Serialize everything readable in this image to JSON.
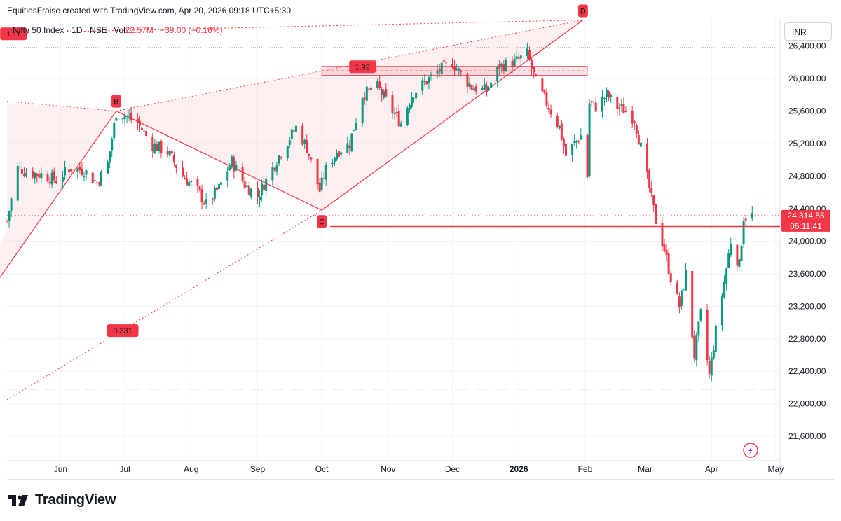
{
  "header": {
    "attribution": "EquitiesFraise created with TradingView.com, Apr 20, 2026 09:18 UTC+5:30"
  },
  "legend": {
    "symbol": "Nifty 50 Index · 1D · NSE",
    "vol_label": "Vol",
    "vol_value": "22.57M",
    "change": "−39.00 (−0.16%)"
  },
  "currency": "INR",
  "brand": {
    "name": "TradingView",
    "logo_icon": "tradingview-logo-icon"
  },
  "colors": {
    "up": "#089981",
    "down": "#f23645",
    "pattern": "#f23645",
    "fill": "rgba(242,54,69,0.08)",
    "grid": "#f0f3fa"
  },
  "chart_data": {
    "type": "candlestick",
    "ylim": [
      21300,
      26750
    ],
    "y_ticks": [
      "21,600.00",
      "22,000.00",
      "22,400.00",
      "22,800.00",
      "23,200.00",
      "23,600.00",
      "24,000.00",
      "24,400.00",
      "24,800.00",
      "25,200.00",
      "25,600.00",
      "26,000.00",
      "26,400.00"
    ],
    "y_tick_values": [
      21600,
      22000,
      22400,
      22800,
      23200,
      23600,
      24000,
      24400,
      24800,
      25200,
      25600,
      26000,
      26400
    ],
    "x_labels": [
      {
        "label": "Jun",
        "date": "2025-06-01"
      },
      {
        "label": "Jul",
        "date": "2025-07-01"
      },
      {
        "label": "Aug",
        "date": "2025-08-01"
      },
      {
        "label": "Sep",
        "date": "2025-09-01"
      },
      {
        "label": "Oct",
        "date": "2025-10-01"
      },
      {
        "label": "Nov",
        "date": "2025-11-01"
      },
      {
        "label": "Dec",
        "date": "2025-12-01"
      },
      {
        "label": "2026",
        "date": "2026-01-01",
        "bold": true
      },
      {
        "label": "Feb",
        "date": "2026-02-01"
      },
      {
        "label": "Mar",
        "date": "2026-03-01"
      },
      {
        "label": "Apr",
        "date": "2026-04-01"
      },
      {
        "label": "May",
        "date": "2026-05-01"
      }
    ],
    "last_price": "24,314.55",
    "countdown": "06:11:41",
    "last_price_value": 24314.55,
    "horizontal_level": 24180,
    "dotted_levels": [
      26380,
      22180
    ],
    "pattern_points": [
      {
        "label": "B",
        "date": "2025-06-27",
        "price": 25600
      },
      {
        "label": "C",
        "date": "2025-10-01",
        "price": 24380
      },
      {
        "label": "D",
        "date": "2026-01-31",
        "price": 26720
      }
    ],
    "pattern_start": {
      "date": "2025-04-15",
      "price": 22850
    },
    "ratios": [
      {
        "label": "1.11",
        "date": "2025-05-10",
        "price": 26550
      },
      {
        "label": "1.92",
        "date": "2025-10-20",
        "price": 26145
      },
      {
        "label": "0.331",
        "date": "2025-06-30",
        "price": 22900
      }
    ],
    "zone_192": [
      26040,
      26150
    ],
    "x_start": "2025-05-07",
    "x_end": "2026-05-03",
    "path": [
      [
        "2025-05-07",
        24250
      ],
      [
        "2025-05-12",
        24900
      ],
      [
        "2025-05-16",
        24850
      ],
      [
        "2025-05-23",
        24820
      ],
      [
        "2025-05-30",
        24750
      ],
      [
        "2025-06-05",
        24900
      ],
      [
        "2025-06-12",
        24870
      ],
      [
        "2025-06-18",
        24720
      ],
      [
        "2025-06-23",
        24950
      ],
      [
        "2025-06-27",
        25580
      ],
      [
        "2025-07-01",
        25550
      ],
      [
        "2025-07-07",
        25450
      ],
      [
        "2025-07-14",
        25180
      ],
      [
        "2025-07-21",
        25100
      ],
      [
        "2025-07-28",
        24800
      ],
      [
        "2025-08-04",
        24620
      ],
      [
        "2025-08-08",
        24450
      ],
      [
        "2025-08-14",
        24650
      ],
      [
        "2025-08-20",
        24980
      ],
      [
        "2025-08-26",
        24700
      ],
      [
        "2025-09-01",
        24550
      ],
      [
        "2025-09-05",
        24750
      ],
      [
        "2025-09-12",
        25100
      ],
      [
        "2025-09-19",
        25400
      ],
      [
        "2025-09-24",
        25150
      ],
      [
        "2025-09-30",
        24620
      ],
      [
        "2025-10-03",
        24880
      ],
      [
        "2025-10-08",
        25100
      ],
      [
        "2025-10-14",
        25200
      ],
      [
        "2025-10-20",
        25800
      ],
      [
        "2025-10-27",
        25900
      ],
      [
        "2025-11-03",
        25600
      ],
      [
        "2025-11-07",
        25450
      ],
      [
        "2025-11-12",
        25800
      ],
      [
        "2025-11-18",
        25950
      ],
      [
        "2025-11-25",
        26100
      ],
      [
        "2025-12-01",
        26200
      ],
      [
        "2025-12-05",
        26050
      ],
      [
        "2025-12-10",
        25900
      ],
      [
        "2025-12-17",
        25850
      ],
      [
        "2025-12-23",
        26150
      ],
      [
        "2025-12-30",
        26200
      ],
      [
        "2026-01-05",
        26300
      ],
      [
        "2026-01-09",
        25950
      ],
      [
        "2026-01-14",
        25700
      ],
      [
        "2026-01-20",
        25400
      ],
      [
        "2026-01-23",
        25050
      ],
      [
        "2026-01-27",
        25200
      ],
      [
        "2026-01-30",
        25300
      ],
      [
        "2026-02-02",
        24800
      ],
      [
        "2026-02-03",
        25700
      ],
      [
        "2026-02-06",
        25650
      ],
      [
        "2026-02-11",
        25800
      ],
      [
        "2026-02-16",
        25650
      ],
      [
        "2026-02-20",
        25600
      ],
      [
        "2026-02-24",
        25500
      ],
      [
        "2026-02-27",
        25150
      ],
      [
        "2026-03-03",
        24650
      ],
      [
        "2026-03-06",
        24250
      ],
      [
        "2026-03-10",
        23900
      ],
      [
        "2026-03-13",
        23550
      ],
      [
        "2026-03-17",
        23200
      ],
      [
        "2026-03-20",
        23600
      ],
      [
        "2026-03-24",
        22600
      ],
      [
        "2026-03-27",
        23100
      ],
      [
        "2026-03-31",
        22350
      ],
      [
        "2026-04-03",
        22900
      ],
      [
        "2026-04-07",
        23500
      ],
      [
        "2026-04-10",
        24000
      ],
      [
        "2026-04-14",
        23700
      ],
      [
        "2026-04-16",
        24300
      ],
      [
        "2026-04-20",
        24314
      ]
    ]
  }
}
